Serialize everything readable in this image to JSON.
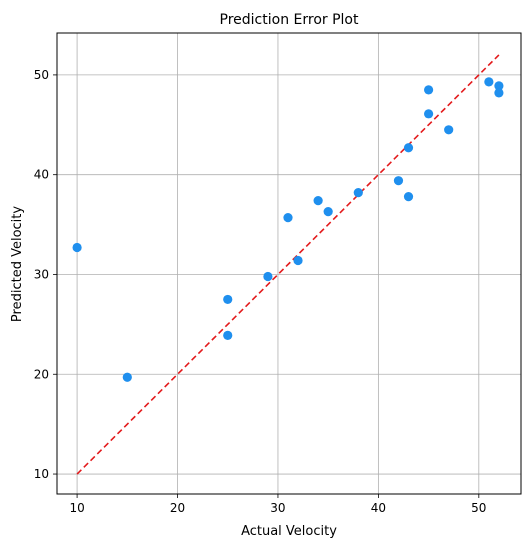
{
  "chart_data": {
    "type": "scatter",
    "title": "Prediction Error Plot",
    "xlabel": "Actual Velocity",
    "ylabel": "Predicted Velocity",
    "xlim": [
      8,
      54.2
    ],
    "ylim": [
      8,
      54.2
    ],
    "xticks": [
      10,
      20,
      30,
      40,
      50
    ],
    "yticks": [
      10,
      20,
      30,
      40,
      50
    ],
    "grid": true,
    "point_color": "#1f8fee",
    "reference_line": {
      "from": [
        10,
        10
      ],
      "to": [
        52,
        52
      ],
      "color": "#e31a1c",
      "style": "dashed"
    },
    "points": [
      {
        "x": 10,
        "y": 32.7
      },
      {
        "x": 15,
        "y": 19.7
      },
      {
        "x": 25,
        "y": 27.5
      },
      {
        "x": 25,
        "y": 23.9
      },
      {
        "x": 29,
        "y": 29.8
      },
      {
        "x": 31,
        "y": 35.7
      },
      {
        "x": 32,
        "y": 31.4
      },
      {
        "x": 34,
        "y": 37.4
      },
      {
        "x": 35,
        "y": 36.3
      },
      {
        "x": 38,
        "y": 38.2
      },
      {
        "x": 42,
        "y": 39.4
      },
      {
        "x": 43,
        "y": 37.8
      },
      {
        "x": 43,
        "y": 42.7
      },
      {
        "x": 45,
        "y": 48.5
      },
      {
        "x": 45,
        "y": 46.1
      },
      {
        "x": 47,
        "y": 44.5
      },
      {
        "x": 51,
        "y": 49.3
      },
      {
        "x": 52,
        "y": 48.9
      },
      {
        "x": 52,
        "y": 48.2
      }
    ]
  }
}
